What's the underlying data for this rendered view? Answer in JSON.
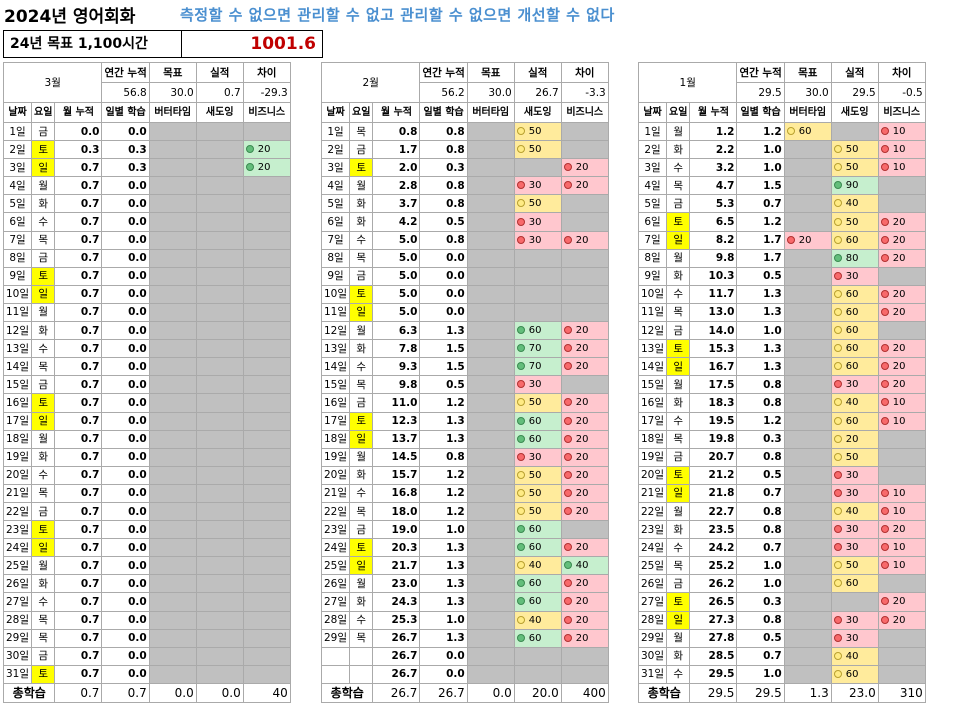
{
  "title": "2024년 영어회화",
  "motto": "측정할 수 없으면 관리할 수 없고 관리할 수 없으면 개선할 수 없다",
  "goal": {
    "label": "24년 목표 1,100시간",
    "value": "1001.6"
  },
  "headers": {
    "annual_cum": "연간 누적",
    "target": "목표",
    "actual": "실적",
    "diff": "차이",
    "date": "날짜",
    "weekday": "요일",
    "month_cum": "월 누적",
    "daily": "일별 학습",
    "butter": "버터타임",
    "saedo": "새도잉",
    "biz": "비즈니스",
    "total": "총학습"
  },
  "months": [
    {
      "name": "3월",
      "annual": "56.8",
      "target": "30.0",
      "actual": "0.7",
      "diff": "-29.3",
      "rows": [
        [
          "1일",
          "금",
          "0.0",
          "0.0",
          "G",
          "G",
          "G"
        ],
        [
          "2일",
          "토",
          "0.3",
          "0.3",
          "G",
          "G",
          "g20"
        ],
        [
          "3일",
          "일",
          "0.7",
          "0.3",
          "G",
          "G",
          "g20"
        ],
        [
          "4일",
          "월",
          "0.7",
          "0.0",
          "G",
          "G",
          "G"
        ],
        [
          "5일",
          "화",
          "0.7",
          "0.0",
          "G",
          "G",
          "G"
        ],
        [
          "6일",
          "수",
          "0.7",
          "0.0",
          "G",
          "G",
          "G"
        ],
        [
          "7일",
          "목",
          "0.7",
          "0.0",
          "G",
          "G",
          "G"
        ],
        [
          "8일",
          "금",
          "0.7",
          "0.0",
          "G",
          "G",
          "G"
        ],
        [
          "9일",
          "토",
          "0.7",
          "0.0",
          "G",
          "G",
          "G"
        ],
        [
          "10일",
          "일",
          "0.7",
          "0.0",
          "G",
          "G",
          "G"
        ],
        [
          "11일",
          "월",
          "0.7",
          "0.0",
          "G",
          "G",
          "G"
        ],
        [
          "12일",
          "화",
          "0.7",
          "0.0",
          "G",
          "G",
          "G"
        ],
        [
          "13일",
          "수",
          "0.7",
          "0.0",
          "G",
          "G",
          "G"
        ],
        [
          "14일",
          "목",
          "0.7",
          "0.0",
          "G",
          "G",
          "G"
        ],
        [
          "15일",
          "금",
          "0.7",
          "0.0",
          "G",
          "G",
          "G"
        ],
        [
          "16일",
          "토",
          "0.7",
          "0.0",
          "G",
          "G",
          "G"
        ],
        [
          "17일",
          "일",
          "0.7",
          "0.0",
          "G",
          "G",
          "G"
        ],
        [
          "18일",
          "월",
          "0.7",
          "0.0",
          "G",
          "G",
          "G"
        ],
        [
          "19일",
          "화",
          "0.7",
          "0.0",
          "G",
          "G",
          "G"
        ],
        [
          "20일",
          "수",
          "0.7",
          "0.0",
          "G",
          "G",
          "G"
        ],
        [
          "21일",
          "목",
          "0.7",
          "0.0",
          "G",
          "G",
          "G"
        ],
        [
          "22일",
          "금",
          "0.7",
          "0.0",
          "G",
          "G",
          "G"
        ],
        [
          "23일",
          "토",
          "0.7",
          "0.0",
          "G",
          "G",
          "G"
        ],
        [
          "24일",
          "일",
          "0.7",
          "0.0",
          "G",
          "G",
          "G"
        ],
        [
          "25일",
          "월",
          "0.7",
          "0.0",
          "G",
          "G",
          "G"
        ],
        [
          "26일",
          "화",
          "0.7",
          "0.0",
          "G",
          "G",
          "G"
        ],
        [
          "27일",
          "수",
          "0.7",
          "0.0",
          "G",
          "G",
          "G"
        ],
        [
          "28일",
          "목",
          "0.7",
          "0.0",
          "G",
          "G",
          "G"
        ],
        [
          "29일",
          "목",
          "0.7",
          "0.0",
          "G",
          "G",
          "G"
        ],
        [
          "30일",
          "금",
          "0.7",
          "0.0",
          "G",
          "G",
          "G"
        ],
        [
          "31일",
          "토",
          "0.7",
          "0.0",
          "G",
          "G",
          "G"
        ]
      ],
      "totals": [
        "0.7",
        "0.7",
        "0.0",
        "0.0",
        "40"
      ]
    },
    {
      "name": "2월",
      "annual": "56.2",
      "target": "30.0",
      "actual": "26.7",
      "diff": "-3.3",
      "rows": [
        [
          "1일",
          "목",
          "0.8",
          "0.8",
          "G",
          "y50",
          "G"
        ],
        [
          "2일",
          "금",
          "1.7",
          "0.8",
          "G",
          "y50",
          "G"
        ],
        [
          "3일",
          "토",
          "2.0",
          "0.3",
          "G",
          "G",
          "r20"
        ],
        [
          "4일",
          "월",
          "2.8",
          "0.8",
          "G",
          "r30",
          "r20"
        ],
        [
          "5일",
          "화",
          "3.7",
          "0.8",
          "G",
          "y50",
          "G"
        ],
        [
          "6일",
          "화",
          "4.2",
          "0.5",
          "G",
          "r30",
          "G"
        ],
        [
          "7일",
          "수",
          "5.0",
          "0.8",
          "G",
          "r30",
          "r20"
        ],
        [
          "8일",
          "목",
          "5.0",
          "0.0",
          "G",
          "G",
          "G"
        ],
        [
          "9일",
          "금",
          "5.0",
          "0.0",
          "G",
          "G",
          "G"
        ],
        [
          "10일",
          "토",
          "5.0",
          "0.0",
          "G",
          "G",
          "G"
        ],
        [
          "11일",
          "일",
          "5.0",
          "0.0",
          "G",
          "G",
          "G"
        ],
        [
          "12일",
          "월",
          "6.3",
          "1.3",
          "G",
          "g60",
          "r20"
        ],
        [
          "13일",
          "화",
          "7.8",
          "1.5",
          "G",
          "g70",
          "r20"
        ],
        [
          "14일",
          "수",
          "9.3",
          "1.5",
          "G",
          "g70",
          "r20"
        ],
        [
          "15일",
          "목",
          "9.8",
          "0.5",
          "G",
          "r30",
          "G"
        ],
        [
          "16일",
          "금",
          "11.0",
          "1.2",
          "G",
          "y50",
          "r20"
        ],
        [
          "17일",
          "토",
          "12.3",
          "1.3",
          "G",
          "g60",
          "r20"
        ],
        [
          "18일",
          "일",
          "13.7",
          "1.3",
          "G",
          "g60",
          "r20"
        ],
        [
          "19일",
          "월",
          "14.5",
          "0.8",
          "G",
          "r30",
          "r20"
        ],
        [
          "20일",
          "화",
          "15.7",
          "1.2",
          "G",
          "y50",
          "r20"
        ],
        [
          "21일",
          "수",
          "16.8",
          "1.2",
          "G",
          "y50",
          "r20"
        ],
        [
          "22일",
          "목",
          "18.0",
          "1.2",
          "G",
          "y50",
          "r20"
        ],
        [
          "23일",
          "금",
          "19.0",
          "1.0",
          "G",
          "g60",
          "G"
        ],
        [
          "24일",
          "토",
          "20.3",
          "1.3",
          "G",
          "g60",
          "r20"
        ],
        [
          "25일",
          "일",
          "21.7",
          "1.3",
          "G",
          "y40",
          "g40"
        ],
        [
          "26일",
          "월",
          "23.0",
          "1.3",
          "G",
          "g60",
          "r20"
        ],
        [
          "27일",
          "화",
          "24.3",
          "1.3",
          "G",
          "g60",
          "r20"
        ],
        [
          "28일",
          "수",
          "25.3",
          "1.0",
          "G",
          "y40",
          "r20"
        ],
        [
          "29일",
          "목",
          "26.7",
          "1.3",
          "G",
          "g60",
          "r20"
        ],
        [
          "",
          "",
          "26.7",
          "0.0",
          "G",
          "G",
          "G"
        ],
        [
          "",
          "",
          "26.7",
          "0.0",
          "G",
          "G",
          "G"
        ]
      ],
      "totals": [
        "26.7",
        "26.7",
        "0.0",
        "20.0",
        "400"
      ]
    },
    {
      "name": "1월",
      "annual": "29.5",
      "target": "30.0",
      "actual": "29.5",
      "diff": "-0.5",
      "rows": [
        [
          "1일",
          "월",
          "1.2",
          "1.2",
          "y60",
          "G",
          "r10"
        ],
        [
          "2일",
          "화",
          "2.2",
          "1.0",
          "G",
          "y50",
          "r10"
        ],
        [
          "3일",
          "수",
          "3.2",
          "1.0",
          "G",
          "y50",
          "r10"
        ],
        [
          "4일",
          "목",
          "4.7",
          "1.5",
          "G",
          "g90",
          "G"
        ],
        [
          "5일",
          "금",
          "5.3",
          "0.7",
          "G",
          "y40",
          "G"
        ],
        [
          "6일",
          "토",
          "6.5",
          "1.2",
          "G",
          "y50",
          "r20"
        ],
        [
          "7일",
          "일",
          "8.2",
          "1.7",
          "r20",
          "y60",
          "r20"
        ],
        [
          "8일",
          "월",
          "9.8",
          "1.7",
          "G",
          "g80",
          "r20"
        ],
        [
          "9일",
          "화",
          "10.3",
          "0.5",
          "G",
          "r30",
          "G"
        ],
        [
          "10일",
          "수",
          "11.7",
          "1.3",
          "G",
          "y60",
          "r20"
        ],
        [
          "11일",
          "목",
          "13.0",
          "1.3",
          "G",
          "y60",
          "r20"
        ],
        [
          "12일",
          "금",
          "14.0",
          "1.0",
          "G",
          "y60",
          "G"
        ],
        [
          "13일",
          "토",
          "15.3",
          "1.3",
          "G",
          "y60",
          "r20"
        ],
        [
          "14일",
          "일",
          "16.7",
          "1.3",
          "G",
          "y60",
          "r20"
        ],
        [
          "15일",
          "월",
          "17.5",
          "0.8",
          "G",
          "r30",
          "r20"
        ],
        [
          "16일",
          "화",
          "18.3",
          "0.8",
          "G",
          "y40",
          "r10"
        ],
        [
          "17일",
          "수",
          "19.5",
          "1.2",
          "G",
          "y60",
          "r10"
        ],
        [
          "18일",
          "목",
          "19.8",
          "0.3",
          "G",
          "y20",
          "G"
        ],
        [
          "19일",
          "금",
          "20.7",
          "0.8",
          "G",
          "y50",
          "G"
        ],
        [
          "20일",
          "토",
          "21.2",
          "0.5",
          "G",
          "r30",
          "G"
        ],
        [
          "21일",
          "일",
          "21.8",
          "0.7",
          "G",
          "r30",
          "r10"
        ],
        [
          "22일",
          "월",
          "22.7",
          "0.8",
          "G",
          "y40",
          "r10"
        ],
        [
          "23일",
          "화",
          "23.5",
          "0.8",
          "G",
          "r30",
          "r20"
        ],
        [
          "24일",
          "수",
          "24.2",
          "0.7",
          "G",
          "r30",
          "r10"
        ],
        [
          "25일",
          "목",
          "25.2",
          "1.0",
          "G",
          "y50",
          "r10"
        ],
        [
          "26일",
          "금",
          "26.2",
          "1.0",
          "G",
          "y60",
          "G"
        ],
        [
          "27일",
          "토",
          "26.5",
          "0.3",
          "G",
          "G",
          "r20"
        ],
        [
          "28일",
          "일",
          "27.3",
          "0.8",
          "G",
          "r30",
          "r20"
        ],
        [
          "29일",
          "월",
          "27.8",
          "0.5",
          "G",
          "r30",
          "G"
        ],
        [
          "30일",
          "화",
          "28.5",
          "0.7",
          "G",
          "y40",
          "G"
        ],
        [
          "31일",
          "수",
          "29.5",
          "1.0",
          "G",
          "y60",
          "G"
        ]
      ],
      "totals": [
        "29.5",
        "29.5",
        "1.3",
        "23.0",
        "310"
      ]
    }
  ]
}
